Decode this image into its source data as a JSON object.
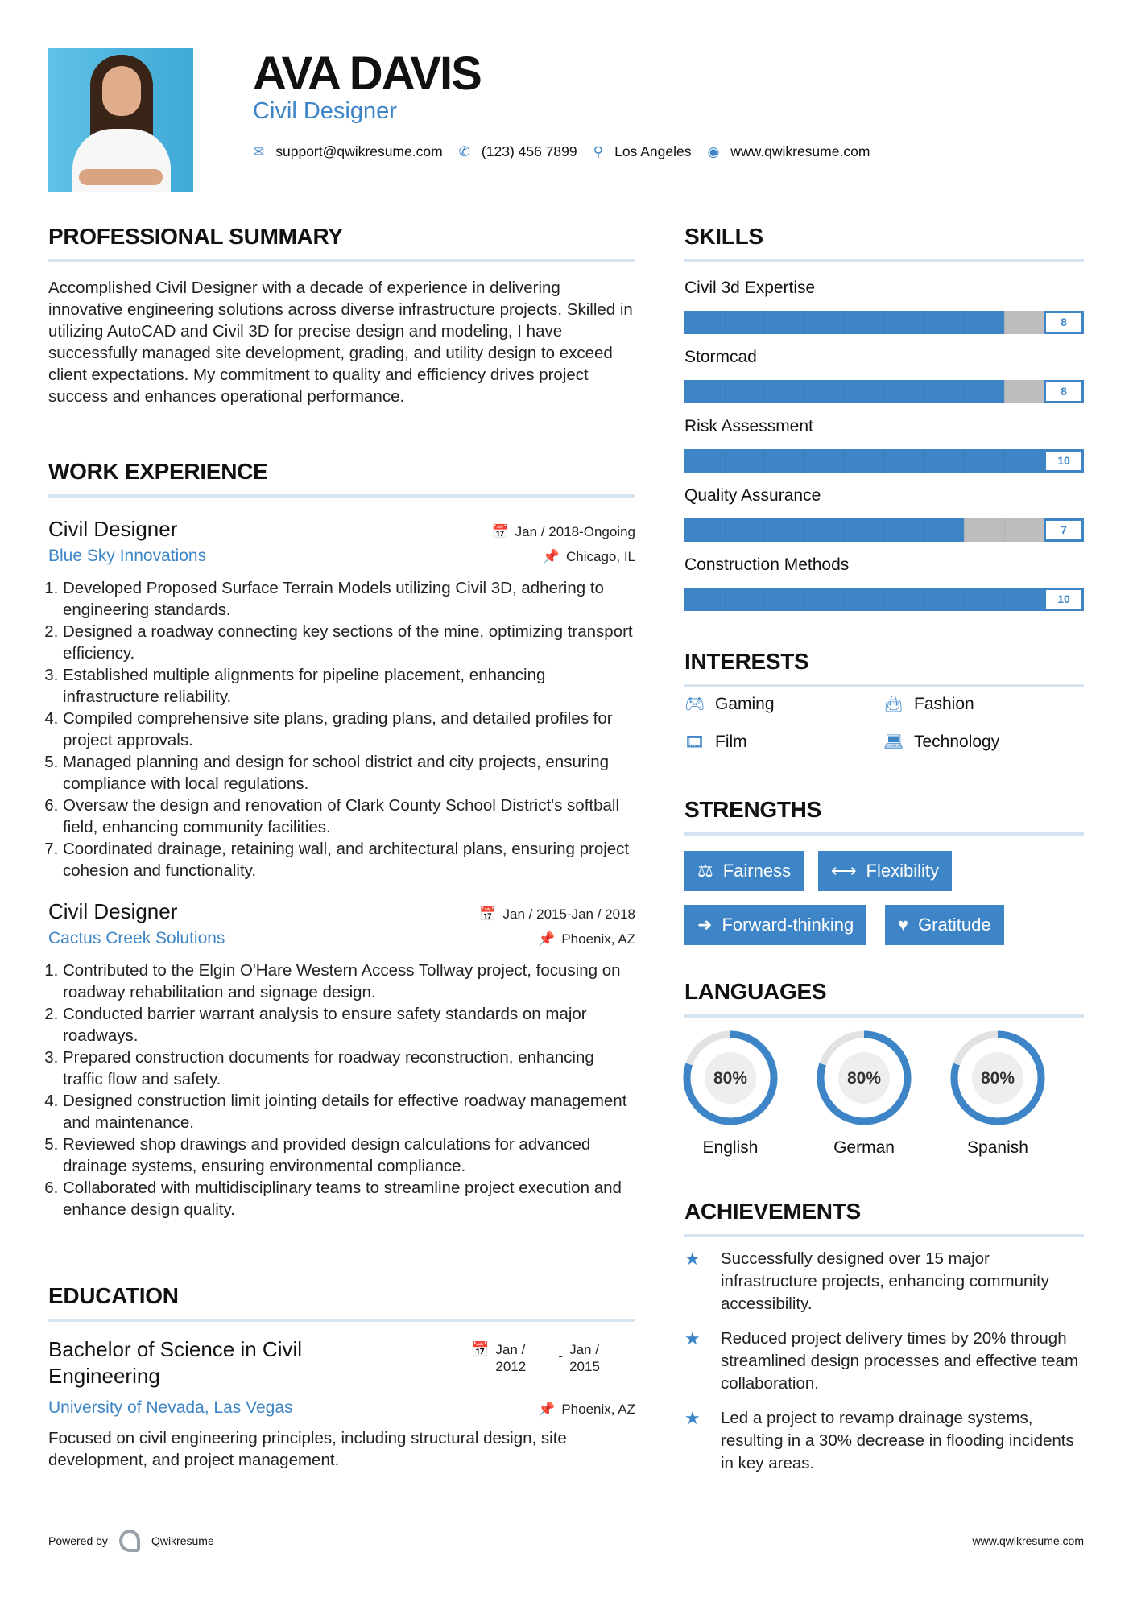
{
  "header": {
    "name": "AVA DAVIS",
    "title": "Civil Designer",
    "contact": {
      "email": "support@qwikresume.com",
      "phone": "(123) 456 7899",
      "location": "Los Angeles",
      "website": "www.qwikresume.com"
    }
  },
  "summary": {
    "heading": "PROFESSIONAL SUMMARY",
    "text": "Accomplished Civil Designer with a decade of experience in delivering innovative engineering solutions across diverse infrastructure projects. Skilled in utilizing AutoCAD and Civil 3D for precise design and modeling, I have successfully managed site development, grading, and utility design to exceed client expectations. My commitment to quality and efficiency drives project success and enhances operational performance."
  },
  "experience": {
    "heading": "WORK EXPERIENCE",
    "jobs": [
      {
        "title": "Civil Designer",
        "company": "Blue Sky Innovations",
        "dates": "Jan / 2018-Ongoing",
        "location": "Chicago, IL",
        "bullets": [
          "Developed Proposed Surface Terrain Models utilizing Civil 3D, adhering to engineering standards.",
          "Designed a roadway connecting key sections of the mine, optimizing transport efficiency.",
          "Established multiple alignments for pipeline placement, enhancing infrastructure reliability.",
          "Compiled comprehensive site plans, grading plans, and detailed profiles for project approvals.",
          "Managed planning and design for school district and city projects, ensuring compliance with local regulations.",
          "Oversaw the design and renovation of Clark County School District's softball field, enhancing community facilities.",
          "Coordinated drainage, retaining wall, and architectural plans, ensuring project cohesion and functionality."
        ]
      },
      {
        "title": "Civil Designer",
        "company": "Cactus Creek Solutions",
        "dates": "Jan / 2015-Jan / 2018",
        "location": "Phoenix, AZ",
        "bullets": [
          "Contributed to the Elgin O'Hare Western Access Tollway project, focusing on roadway rehabilitation and signage design.",
          "Conducted barrier warrant analysis to ensure safety standards on major roadways.",
          "Prepared construction documents for roadway reconstruction, enhancing traffic flow and safety.",
          "Designed construction limit jointing details for effective roadway management and maintenance.",
          "Reviewed shop drawings and provided design calculations for advanced drainage systems, ensuring environmental compliance.",
          "Collaborated with multidisciplinary teams to streamline project execution and enhance design quality."
        ]
      }
    ]
  },
  "education": {
    "heading": "EDUCATION",
    "degree": "Bachelor of Science in Civil Engineering",
    "school": "University of Nevada, Las Vegas",
    "start": "Jan / 2012",
    "end": "Jan / 2015",
    "separator": "-",
    "location": "Phoenix, AZ",
    "description": "Focused on civil engineering principles, including structural design, site development, and project management."
  },
  "skills": {
    "heading": "SKILLS",
    "max": 10,
    "items": [
      {
        "name": "Civil 3d Expertise",
        "level": 8
      },
      {
        "name": "Stormcad",
        "level": 8
      },
      {
        "name": "Risk Assessment",
        "level": 10
      },
      {
        "name": "Quality Assurance",
        "level": 7
      },
      {
        "name": "Construction Methods",
        "level": 10
      }
    ]
  },
  "interests": {
    "heading": "INTERESTS",
    "items": [
      {
        "label": "Gaming",
        "icon": "gamepad-icon"
      },
      {
        "label": "Fashion",
        "icon": "shopping-bag-icon"
      },
      {
        "label": "Film",
        "icon": "film-icon"
      },
      {
        "label": "Technology",
        "icon": "laptop-icon"
      }
    ]
  },
  "strengths": {
    "heading": "STRENGTHS",
    "items": [
      {
        "label": "Fairness",
        "icon": "balance-scale-icon"
      },
      {
        "label": "Flexibility",
        "icon": "arrows-h-icon"
      },
      {
        "label": "Forward-thinking",
        "icon": "arrow-right-icon"
      },
      {
        "label": "Gratitude",
        "icon": "heart-icon"
      }
    ]
  },
  "languages": {
    "heading": "LANGUAGES",
    "items": [
      {
        "name": "English",
        "percent": 80,
        "label": "80%"
      },
      {
        "name": "German",
        "percent": 80,
        "label": "80%"
      },
      {
        "name": "Spanish",
        "percent": 80,
        "label": "80%"
      }
    ]
  },
  "achievements": {
    "heading": "ACHIEVEMENTS",
    "items": [
      "Successfully designed over 15 major infrastructure projects, enhancing community accessibility.",
      "Reduced project delivery times by 20% through streamlined design processes and effective team collaboration.",
      "Led a project to revamp drainage systems, resulting in a 30% decrease in flooding incidents in key areas."
    ]
  },
  "footer": {
    "powered_by": "Powered by",
    "brand": "Qwikresume",
    "website": "www.qwikresume.com"
  },
  "colors": {
    "accent": "#3d85c6",
    "rule": "#d6e4f2",
    "bar_empty": "#bdbdbd"
  }
}
